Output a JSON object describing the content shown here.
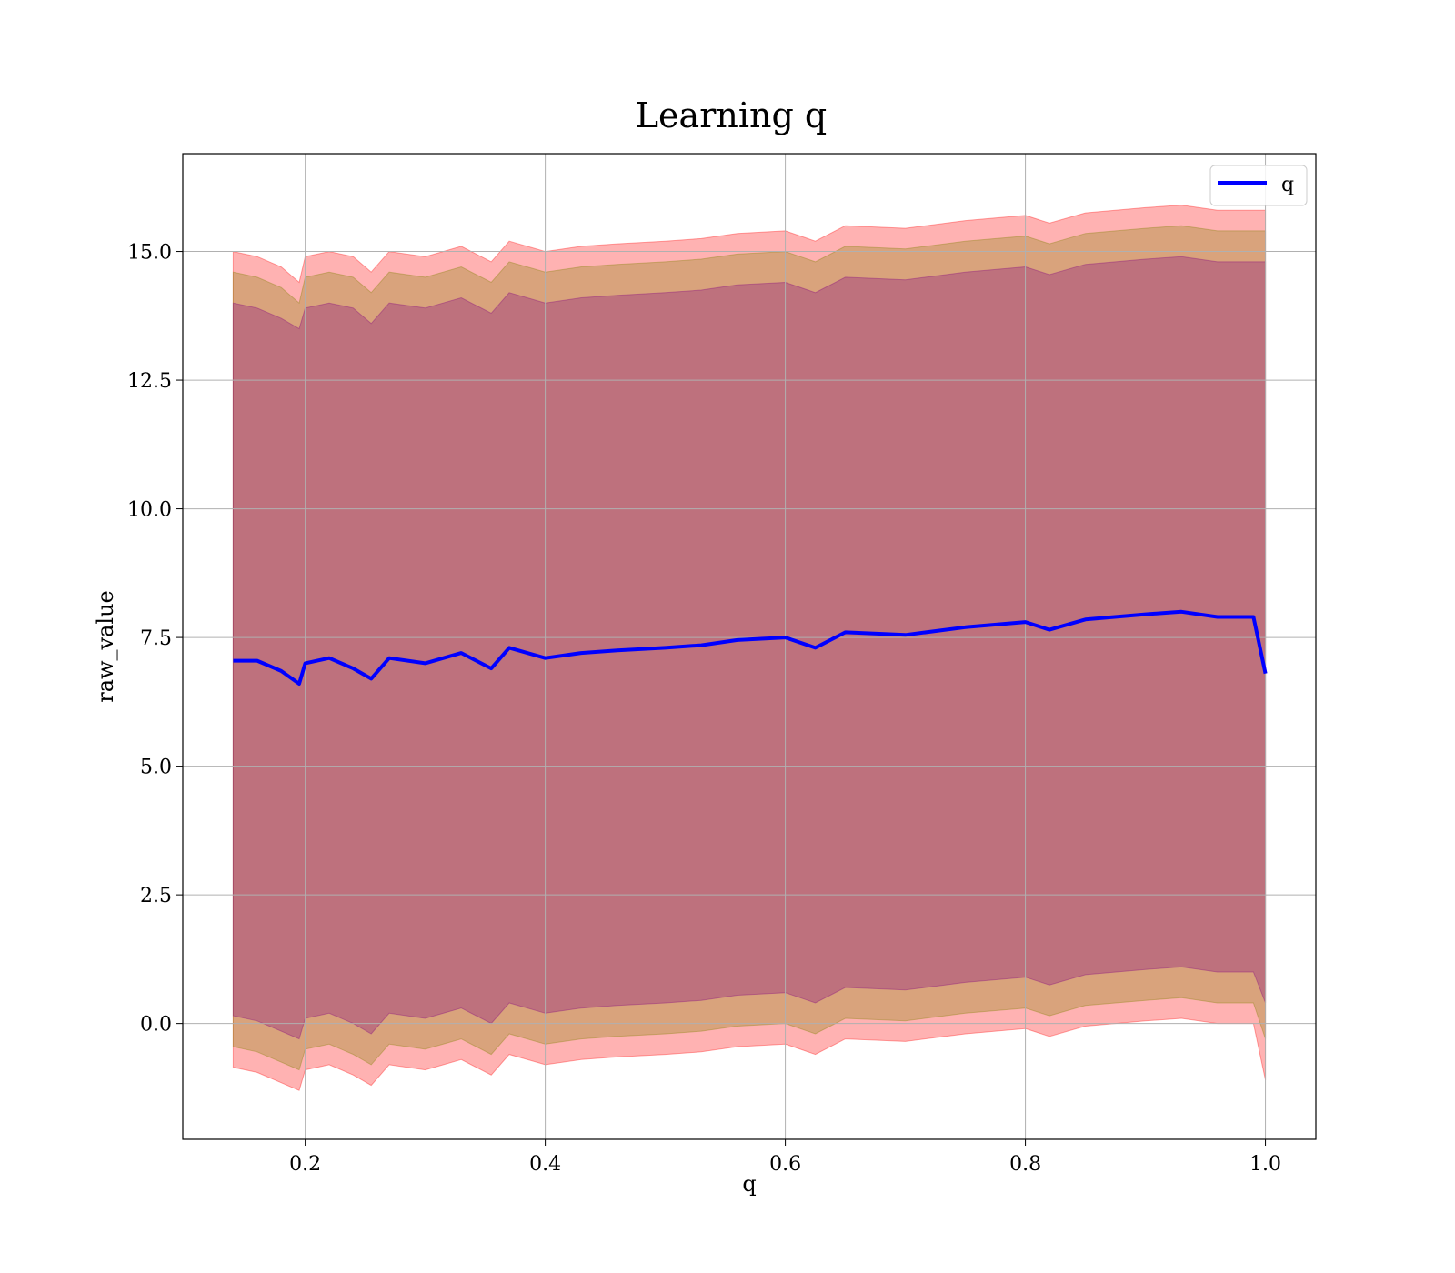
{
  "chart_data": {
    "type": "line",
    "title": "Learning q",
    "xlabel": "q",
    "ylabel": "raw_value",
    "xlim": [
      0.098,
      1.042
    ],
    "ylim": [
      -2.25,
      16.9
    ],
    "xticks": [
      0.2,
      0.4,
      0.6,
      0.8,
      1.0
    ],
    "xtick_labels": [
      "0.2",
      "0.4",
      "0.6",
      "0.8",
      "1.0"
    ],
    "yticks": [
      0.0,
      2.5,
      5.0,
      7.5,
      10.0,
      12.5,
      15.0
    ],
    "ytick_labels": [
      "0.0",
      "2.5",
      "5.0",
      "7.5",
      "10.0",
      "12.5",
      "15.0"
    ],
    "grid": true,
    "legend": {
      "position": "top-right",
      "entries": [
        "q"
      ]
    },
    "x": [
      0.14,
      0.16,
      0.18,
      0.195,
      0.2,
      0.22,
      0.24,
      0.255,
      0.27,
      0.3,
      0.33,
      0.355,
      0.37,
      0.4,
      0.43,
      0.46,
      0.5,
      0.53,
      0.56,
      0.6,
      0.625,
      0.65,
      0.7,
      0.75,
      0.8,
      0.82,
      0.85,
      0.9,
      0.93,
      0.96,
      0.99,
      1.0
    ],
    "series": [
      {
        "name": "q",
        "color": "#0000ff",
        "values": [
          7.05,
          7.05,
          6.85,
          6.6,
          7.0,
          7.1,
          6.9,
          6.7,
          7.1,
          7.0,
          7.2,
          6.9,
          7.3,
          7.1,
          7.2,
          7.25,
          7.3,
          7.35,
          7.45,
          7.5,
          7.3,
          7.6,
          7.55,
          7.7,
          7.8,
          7.65,
          7.85,
          7.95,
          8.0,
          7.9,
          7.9,
          6.8
        ]
      }
    ],
    "bands": [
      {
        "color": "#ff0000",
        "upper": [
          15.0,
          14.9,
          14.7,
          14.4,
          14.9,
          15.0,
          14.9,
          14.6,
          15.0,
          14.9,
          15.1,
          14.8,
          15.2,
          15.0,
          15.1,
          15.15,
          15.2,
          15.25,
          15.35,
          15.4,
          15.2,
          15.5,
          15.45,
          15.6,
          15.7,
          15.55,
          15.75,
          15.85,
          15.9,
          15.8,
          15.8,
          15.8
        ],
        "lower": [
          -0.85,
          -0.95,
          -1.15,
          -1.3,
          -0.9,
          -0.8,
          -1.0,
          -1.2,
          -0.8,
          -0.9,
          -0.7,
          -1.0,
          -0.6,
          -0.8,
          -0.7,
          -0.65,
          -0.6,
          -0.55,
          -0.45,
          -0.4,
          -0.6,
          -0.3,
          -0.35,
          -0.2,
          -0.1,
          -0.25,
          -0.05,
          0.05,
          0.1,
          0.0,
          0.0,
          -1.1
        ]
      },
      {
        "color": "#808000",
        "upper": [
          14.6,
          14.5,
          14.3,
          14.0,
          14.5,
          14.6,
          14.5,
          14.2,
          14.6,
          14.5,
          14.7,
          14.4,
          14.8,
          14.6,
          14.7,
          14.75,
          14.8,
          14.85,
          14.95,
          15.0,
          14.8,
          15.1,
          15.05,
          15.2,
          15.3,
          15.15,
          15.35,
          15.45,
          15.5,
          15.4,
          15.4,
          15.4
        ],
        "lower": [
          -0.45,
          -0.55,
          -0.75,
          -0.9,
          -0.5,
          -0.4,
          -0.6,
          -0.8,
          -0.4,
          -0.5,
          -0.3,
          -0.6,
          -0.2,
          -0.4,
          -0.3,
          -0.25,
          -0.2,
          -0.15,
          -0.05,
          0.0,
          -0.2,
          0.1,
          0.05,
          0.2,
          0.3,
          0.15,
          0.35,
          0.45,
          0.5,
          0.4,
          0.4,
          -0.3
        ]
      },
      {
        "color": "#800080",
        "upper": [
          14.0,
          13.9,
          13.7,
          13.5,
          13.9,
          14.0,
          13.9,
          13.6,
          14.0,
          13.9,
          14.1,
          13.8,
          14.2,
          14.0,
          14.1,
          14.15,
          14.2,
          14.25,
          14.35,
          14.4,
          14.2,
          14.5,
          14.45,
          14.6,
          14.7,
          14.55,
          14.75,
          14.85,
          14.9,
          14.8,
          14.8,
          14.8
        ],
        "lower": [
          0.15,
          0.05,
          -0.15,
          -0.3,
          0.1,
          0.2,
          0.0,
          -0.2,
          0.2,
          0.1,
          0.3,
          0.0,
          0.4,
          0.2,
          0.3,
          0.35,
          0.4,
          0.45,
          0.55,
          0.6,
          0.4,
          0.7,
          0.65,
          0.8,
          0.9,
          0.75,
          0.95,
          1.05,
          1.1,
          1.0,
          1.0,
          0.4
        ]
      }
    ]
  }
}
